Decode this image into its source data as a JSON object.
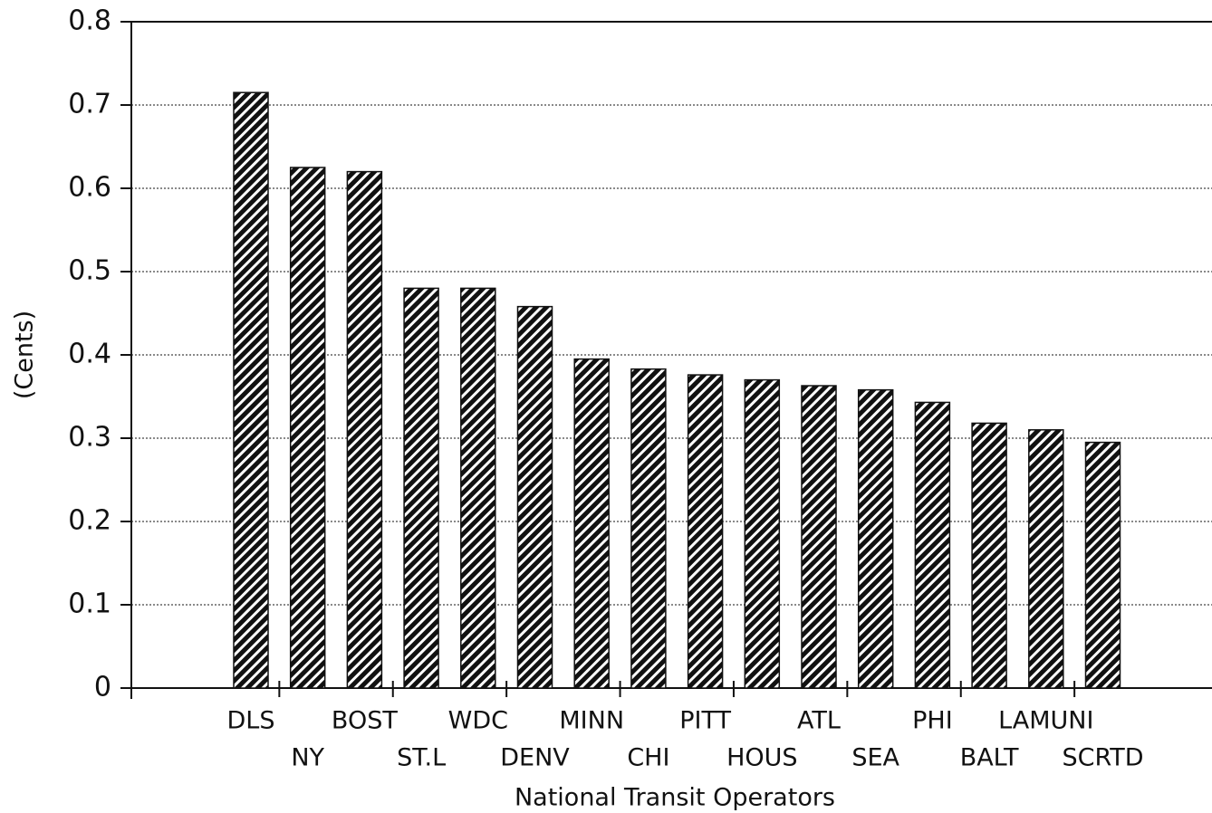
{
  "chart_data": {
    "type": "bar",
    "x_label": "National Transit Operators",
    "y_label": "(Cents)",
    "categories": [
      "DLS",
      "NY",
      "BOST",
      "ST.L",
      "WDC",
      "DENV",
      "MINN",
      "CHI",
      "PITT",
      "HOUS",
      "ATL",
      "SEA",
      "PHI",
      "BALT",
      "LAMUNI",
      "SCRTD"
    ],
    "values": [
      0.715,
      0.625,
      0.62,
      0.48,
      0.48,
      0.458,
      0.395,
      0.383,
      0.376,
      0.37,
      0.363,
      0.358,
      0.343,
      0.318,
      0.31,
      0.295
    ],
    "color": "#111111",
    "ylim": [
      0,
      0.8
    ],
    "yticks": [
      0,
      0.1,
      0.2,
      0.3,
      0.4,
      0.5,
      0.6,
      0.7,
      0.8
    ],
    "grid": true
  }
}
